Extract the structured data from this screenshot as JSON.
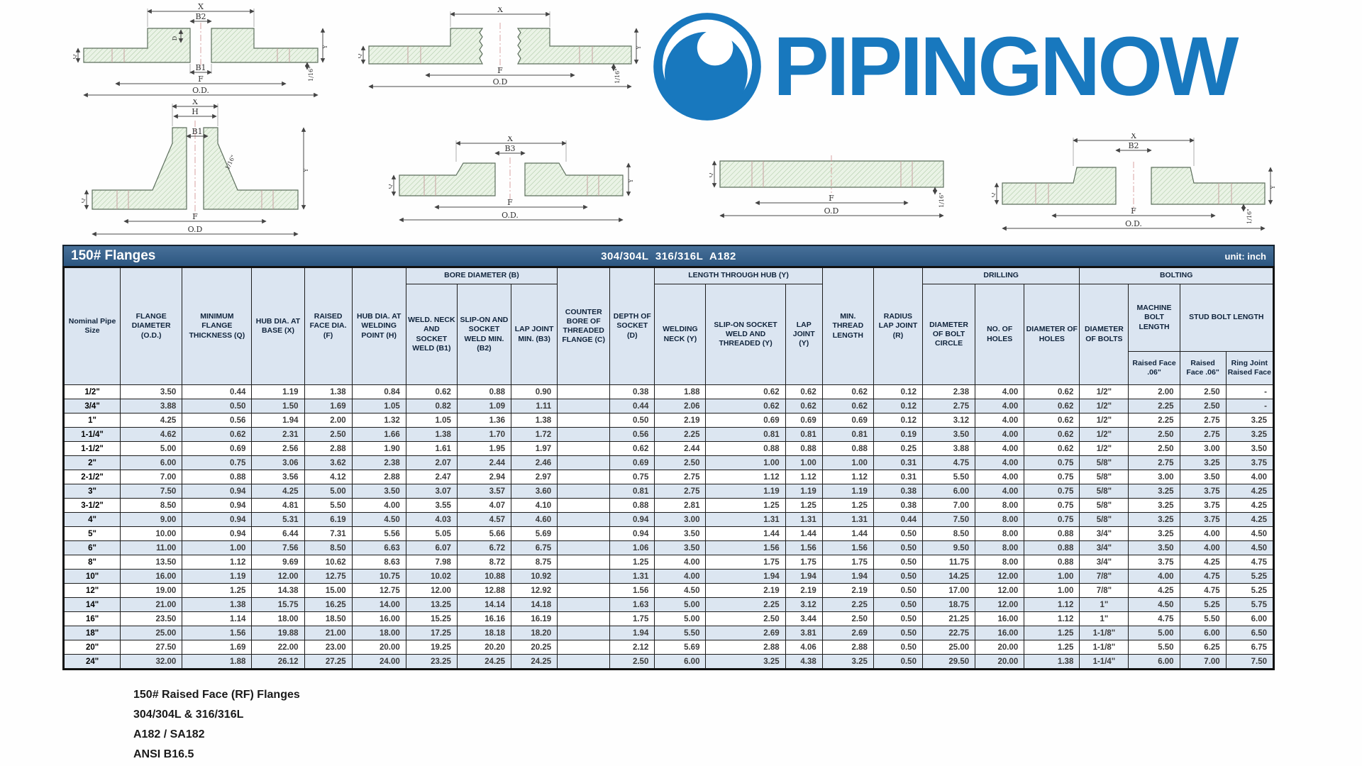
{
  "logo": {
    "text": "PIPINGNOW",
    "color": "#1878be"
  },
  "table": {
    "title": "150# Flanges",
    "subtitle": "304/304L  316/316L  A182",
    "unit": "unit: inch",
    "headers": {
      "nominal": "Nominal Pipe Size",
      "flange_od": "FLANGE DIAMETER (O.D.)",
      "min_thickness": "MINIMUM FLANGE THICKNESS (Q)",
      "hub_base": "HUB DIA. AT BASE (X)",
      "raised_face": "RAISED FACE DIA. (F)",
      "hub_weld": "HUB DIA. AT WELDING POINT (H)",
      "bore_group": "BORE DIAMETER (B)",
      "b1": "WELD. NECK AND SOCKET WELD (B1)",
      "b2": "SLIP-ON AND SOCKET WELD MIN. (B2)",
      "b3": "LAP JOINT MIN. (B3)",
      "counter_bore": "COUNTER BORE OF THREADED FLANGE (C)",
      "depth_socket": "DEPTH OF SOCKET (D)",
      "hub_group": "LENGTH THROUGH HUB (Y)",
      "welding_neck": "WELDING NECK (Y)",
      "slip_on": "SLIP-ON SOCKET WELD AND THREADED (Y)",
      "lap_joint": "LAP JOINT (Y)",
      "min_thread": "MIN. THREAD LENGTH",
      "radius": "RADIUS LAP JOINT (R)",
      "drilling_group": "DRILLING",
      "bolt_circle": "DIAMETER OF BOLT CIRCLE",
      "no_holes": "NO. OF HOLES",
      "dia_holes": "DIAMETER OF HOLES",
      "bolting_group": "BOLTING",
      "dia_bolts": "DIAMETER OF BOLTS",
      "machine_bolt": "MACHINE BOLT LENGTH",
      "stud_bolt": "STUD BOLT LENGTH",
      "machine_rf": "Raised Face .06\"",
      "stud_rf": "Raised Face .06\"",
      "stud_rj": "Ring Joint Raised Face"
    },
    "rows": [
      [
        "1/2\"",
        "3.50",
        "0.44",
        "1.19",
        "1.38",
        "0.84",
        "0.62",
        "0.88",
        "0.90",
        "",
        "0.38",
        "1.88",
        "0.62",
        "0.62",
        "0.62",
        "0.12",
        "2.38",
        "4.00",
        "0.62",
        "1/2\"",
        "2.00",
        "2.50",
        "-"
      ],
      [
        "3/4\"",
        "3.88",
        "0.50",
        "1.50",
        "1.69",
        "1.05",
        "0.82",
        "1.09",
        "1.11",
        "",
        "0.44",
        "2.06",
        "0.62",
        "0.62",
        "0.62",
        "0.12",
        "2.75",
        "4.00",
        "0.62",
        "1/2\"",
        "2.25",
        "2.50",
        "-"
      ],
      [
        "1\"",
        "4.25",
        "0.56",
        "1.94",
        "2.00",
        "1.32",
        "1.05",
        "1.36",
        "1.38",
        "",
        "0.50",
        "2.19",
        "0.69",
        "0.69",
        "0.69",
        "0.12",
        "3.12",
        "4.00",
        "0.62",
        "1/2\"",
        "2.25",
        "2.75",
        "3.25"
      ],
      [
        "1-1/4\"",
        "4.62",
        "0.62",
        "2.31",
        "2.50",
        "1.66",
        "1.38",
        "1.70",
        "1.72",
        "",
        "0.56",
        "2.25",
        "0.81",
        "0.81",
        "0.81",
        "0.19",
        "3.50",
        "4.00",
        "0.62",
        "1/2\"",
        "2.50",
        "2.75",
        "3.25"
      ],
      [
        "1-1/2\"",
        "5.00",
        "0.69",
        "2.56",
        "2.88",
        "1.90",
        "1.61",
        "1.95",
        "1.97",
        "",
        "0.62",
        "2.44",
        "0.88",
        "0.88",
        "0.88",
        "0.25",
        "3.88",
        "4.00",
        "0.62",
        "1/2\"",
        "2.50",
        "3.00",
        "3.50"
      ],
      [
        "2\"",
        "6.00",
        "0.75",
        "3.06",
        "3.62",
        "2.38",
        "2.07",
        "2.44",
        "2.46",
        "",
        "0.69",
        "2.50",
        "1.00",
        "1.00",
        "1.00",
        "0.31",
        "4.75",
        "4.00",
        "0.75",
        "5/8\"",
        "2.75",
        "3.25",
        "3.75"
      ],
      [
        "2-1/2\"",
        "7.00",
        "0.88",
        "3.56",
        "4.12",
        "2.88",
        "2.47",
        "2.94",
        "2.97",
        "",
        "0.75",
        "2.75",
        "1.12",
        "1.12",
        "1.12",
        "0.31",
        "5.50",
        "4.00",
        "0.75",
        "5/8\"",
        "3.00",
        "3.50",
        "4.00"
      ],
      [
        "3\"",
        "7.50",
        "0.94",
        "4.25",
        "5.00",
        "3.50",
        "3.07",
        "3.57",
        "3.60",
        "",
        "0.81",
        "2.75",
        "1.19",
        "1.19",
        "1.19",
        "0.38",
        "6.00",
        "4.00",
        "0.75",
        "5/8\"",
        "3.25",
        "3.75",
        "4.25"
      ],
      [
        "3-1/2\"",
        "8.50",
        "0.94",
        "4.81",
        "5.50",
        "4.00",
        "3.55",
        "4.07",
        "4.10",
        "",
        "0.88",
        "2.81",
        "1.25",
        "1.25",
        "1.25",
        "0.38",
        "7.00",
        "8.00",
        "0.75",
        "5/8\"",
        "3.25",
        "3.75",
        "4.25"
      ],
      [
        "4\"",
        "9.00",
        "0.94",
        "5.31",
        "6.19",
        "4.50",
        "4.03",
        "4.57",
        "4.60",
        "",
        "0.94",
        "3.00",
        "1.31",
        "1.31",
        "1.31",
        "0.44",
        "7.50",
        "8.00",
        "0.75",
        "5/8\"",
        "3.25",
        "3.75",
        "4.25"
      ],
      [
        "5\"",
        "10.00",
        "0.94",
        "6.44",
        "7.31",
        "5.56",
        "5.05",
        "5.66",
        "5.69",
        "",
        "0.94",
        "3.50",
        "1.44",
        "1.44",
        "1.44",
        "0.50",
        "8.50",
        "8.00",
        "0.88",
        "3/4\"",
        "3.25",
        "4.00",
        "4.50"
      ],
      [
        "6\"",
        "11.00",
        "1.00",
        "7.56",
        "8.50",
        "6.63",
        "6.07",
        "6.72",
        "6.75",
        "",
        "1.06",
        "3.50",
        "1.56",
        "1.56",
        "1.56",
        "0.50",
        "9.50",
        "8.00",
        "0.88",
        "3/4\"",
        "3.50",
        "4.00",
        "4.50"
      ],
      [
        "8\"",
        "13.50",
        "1.12",
        "9.69",
        "10.62",
        "8.63",
        "7.98",
        "8.72",
        "8.75",
        "",
        "1.25",
        "4.00",
        "1.75",
        "1.75",
        "1.75",
        "0.50",
        "11.75",
        "8.00",
        "0.88",
        "3/4\"",
        "3.75",
        "4.25",
        "4.75"
      ],
      [
        "10\"",
        "16.00",
        "1.19",
        "12.00",
        "12.75",
        "10.75",
        "10.02",
        "10.88",
        "10.92",
        "",
        "1.31",
        "4.00",
        "1.94",
        "1.94",
        "1.94",
        "0.50",
        "14.25",
        "12.00",
        "1.00",
        "7/8\"",
        "4.00",
        "4.75",
        "5.25"
      ],
      [
        "12\"",
        "19.00",
        "1.25",
        "14.38",
        "15.00",
        "12.75",
        "12.00",
        "12.88",
        "12.92",
        "",
        "1.56",
        "4.50",
        "2.19",
        "2.19",
        "2.19",
        "0.50",
        "17.00",
        "12.00",
        "1.00",
        "7/8\"",
        "4.25",
        "4.75",
        "5.25"
      ],
      [
        "14\"",
        "21.00",
        "1.38",
        "15.75",
        "16.25",
        "14.00",
        "13.25",
        "14.14",
        "14.18",
        "",
        "1.63",
        "5.00",
        "2.25",
        "3.12",
        "2.25",
        "0.50",
        "18.75",
        "12.00",
        "1.12",
        "1\"",
        "4.50",
        "5.25",
        "5.75"
      ],
      [
        "16\"",
        "23.50",
        "1.14",
        "18.00",
        "18.50",
        "16.00",
        "15.25",
        "16.16",
        "16.19",
        "",
        "1.75",
        "5.00",
        "2.50",
        "3.44",
        "2.50",
        "0.50",
        "21.25",
        "16.00",
        "1.12",
        "1\"",
        "4.75",
        "5.50",
        "6.00"
      ],
      [
        "18\"",
        "25.00",
        "1.56",
        "19.88",
        "21.00",
        "18.00",
        "17.25",
        "18.18",
        "18.20",
        "",
        "1.94",
        "5.50",
        "2.69",
        "3.81",
        "2.69",
        "0.50",
        "22.75",
        "16.00",
        "1.25",
        "1-1/8\"",
        "5.00",
        "6.00",
        "6.50"
      ],
      [
        "20\"",
        "27.50",
        "1.69",
        "22.00",
        "23.00",
        "20.00",
        "19.25",
        "20.20",
        "20.25",
        "",
        "2.12",
        "5.69",
        "2.88",
        "4.06",
        "2.88",
        "0.50",
        "25.00",
        "20.00",
        "1.25",
        "1-1/8\"",
        "5.50",
        "6.25",
        "6.75"
      ],
      [
        "24\"",
        "32.00",
        "1.88",
        "26.12",
        "27.25",
        "24.00",
        "23.25",
        "24.25",
        "24.25",
        "",
        "2.50",
        "6.00",
        "3.25",
        "4.38",
        "3.25",
        "0.50",
        "29.50",
        "20.00",
        "1.38",
        "1-1/4\"",
        "6.00",
        "7.00",
        "7.50"
      ]
    ]
  },
  "drawings": {
    "d1": {
      "labels": [
        "X",
        "B2",
        "D",
        "Q",
        "B1",
        "F",
        "O.D.",
        "Y",
        "1/16\""
      ]
    },
    "d2": {
      "labels": [
        "X",
        "Q",
        "F",
        "O.D",
        "Y",
        "1/16\""
      ]
    },
    "d3": {
      "labels": [
        "X",
        "H",
        "B1",
        "1/16\"",
        "Q",
        "F",
        "O.D",
        "Y"
      ]
    },
    "d4": {
      "labels": [
        "X",
        "B3",
        "Q",
        "F",
        "O.D.",
        "Y"
      ]
    },
    "d5": {
      "labels": [
        "Q",
        "F",
        "O.D",
        "1/16\""
      ]
    },
    "d6": {
      "labels": [
        "X",
        "B2",
        "Q",
        "F",
        "O.D.",
        "Y",
        "1/16\""
      ]
    }
  },
  "notes": [
    "150# Raised Face (RF) Flanges",
    "304/304L & 316/316L",
    "A182 / SA182",
    "ANSI B16.5"
  ]
}
